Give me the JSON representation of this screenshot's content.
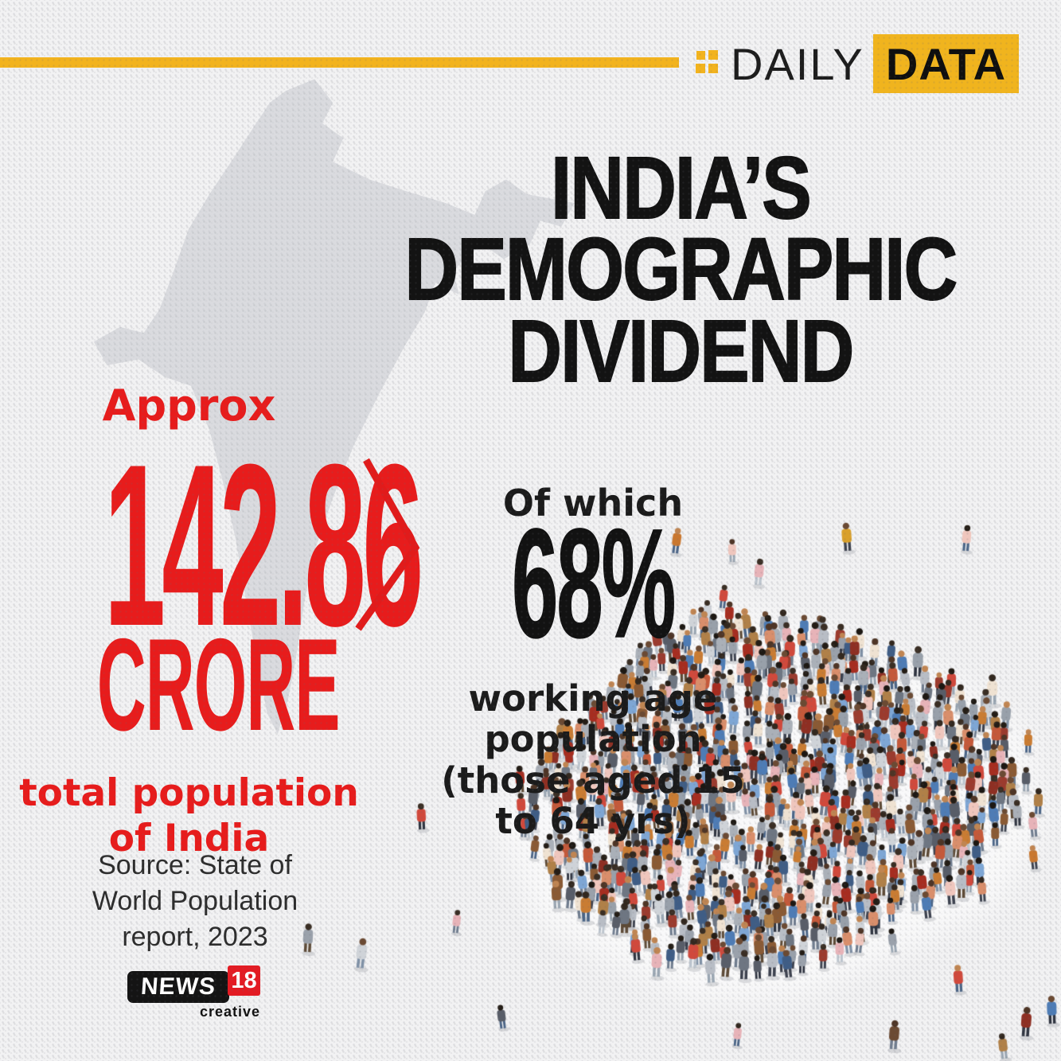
{
  "header": {
    "brand_name": "DAILY",
    "brand_badge": "DATA",
    "accent_color": "#f2b31e",
    "icon": "grid-icon"
  },
  "title": {
    "lines": [
      "INDIA’S",
      "DEMOGRAPHIC",
      "DIVIDEND"
    ],
    "color": "#131313"
  },
  "stat_left": {
    "qualifier": "Approx",
    "value": "142.86",
    "unit": "CRORE",
    "caption_lines": [
      "total population",
      "of India"
    ],
    "color": "#e71c1c"
  },
  "stat_right": {
    "intro": "Of which",
    "value": "68%",
    "caption_lines": [
      "working age",
      "population",
      "(those aged 15",
      "to 64 yrs)"
    ],
    "color": "#1b1b1b"
  },
  "source": {
    "lines": [
      "Source: State of",
      "World Population",
      "report, 2023"
    ]
  },
  "footer_logo": {
    "wordmark": "NEWS",
    "number": "18",
    "sub_label": "creative",
    "red": "#e31b23"
  },
  "illustration": {
    "crowd_shape": "crowd of people forming arrow pointing upper-left",
    "top_colors": [
      "#98a0aa",
      "#9aa1ab",
      "#b8bdc5",
      "#aab0b8",
      "#6e7682",
      "#cfd3d8",
      "#d0493c",
      "#a62d20",
      "#8e2f23",
      "#c4593a",
      "#c97c33",
      "#b08048",
      "#8a5a34",
      "#4e7cb5",
      "#7ea6d4",
      "#3f5d85",
      "#e7b3b8",
      "#efc6bd",
      "#efe2d2",
      "#585d68",
      "#9b3b2e",
      "#d98e6b"
    ],
    "pants_colors": [
      "#4a6486",
      "#6f7c8e",
      "#3c414e",
      "#9aa6b2",
      "#8091a6",
      "#bcc4cd",
      "#5d4a36",
      "#2f3440"
    ],
    "head_colors": [
      "#32281f",
      "#241d16",
      "#4e3526",
      "#6b4a33",
      "#1d1813",
      "#3a2e24",
      "#c08552"
    ],
    "ground_shadow": "rgba(255,255,255,0.55)"
  }
}
